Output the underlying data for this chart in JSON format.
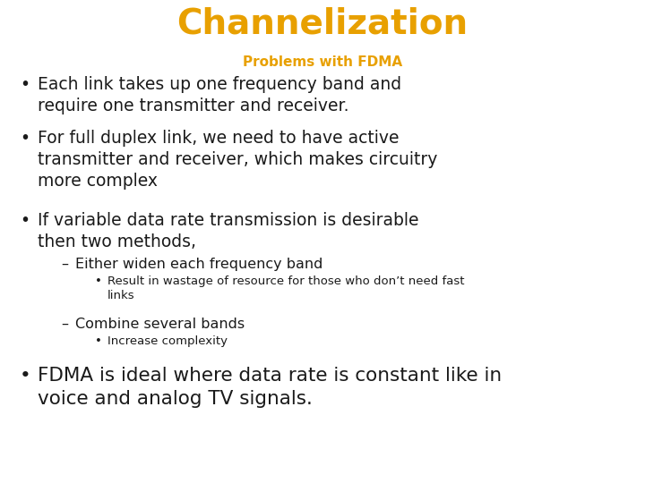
{
  "title": "Channelization",
  "title_color": "#E8A000",
  "title_fontsize": 28,
  "subtitle": "Problems with FDMA",
  "subtitle_color": "#E8A000",
  "subtitle_fontsize": 11,
  "background_color": "#FFFFFF",
  "text_color": "#1a1a1a",
  "bullet_color": "#1a1a1a",
  "bullet1": "Each link takes up one frequency band and\nrequire one transmitter and receiver.",
  "bullet2": "For full duplex link, we need to have active\ntransmitter and receiver, which makes circuitry\nmore complex",
  "bullet3": "If variable data rate transmission is desirable\nthen two methods,",
  "sub_bullet1": "Either widen each frequency band",
  "sub_sub_bullet1": "Result in wastage of resource for those who don’t need fast\nlinks",
  "sub_bullet2": "Combine several bands",
  "sub_sub_bullet2": "Increase complexity",
  "bullet4": "FDMA is ideal where data rate is constant like in\nvoice and analog TV signals.",
  "main_fontsize": 13.5,
  "sub_fontsize": 11.5,
  "sub_sub_fontsize": 9.5
}
